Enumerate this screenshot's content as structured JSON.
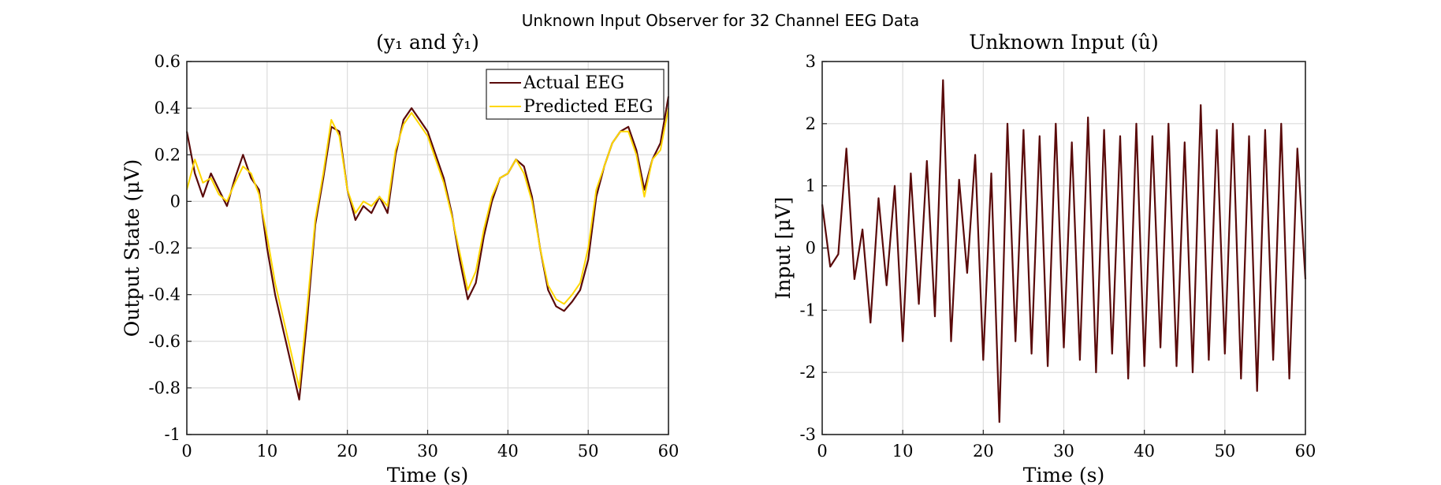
{
  "figure": {
    "title": "Unknown Input Observer for 32 Channel EEG Data"
  },
  "chart_data": [
    {
      "type": "line",
      "title": "(y₁ and ŷ₁)",
      "xlabel": "Time (s)",
      "ylabel": "Output State (μV)",
      "xlim": [
        0,
        60
      ],
      "ylim": [
        -1,
        0.6
      ],
      "xticks": [
        0,
        10,
        20,
        30,
        40,
        50,
        60
      ],
      "yticks": [
        -1,
        -0.8,
        -0.6,
        -0.4,
        -0.2,
        0,
        0.2,
        0.4,
        0.6
      ],
      "xtick_labels": [
        "0",
        "10",
        "20",
        "30",
        "40",
        "50",
        "60"
      ],
      "ytick_labels": [
        "-1",
        "-0.8",
        "-0.6",
        "-0.4",
        "-0.2",
        "0",
        "0.2",
        "0.4",
        "0.6"
      ],
      "grid": true,
      "legend": "top-right",
      "series": [
        {
          "name": "Actual EEG",
          "color": "#5a0a0a",
          "x": [
            0,
            1,
            2,
            3,
            4,
            5,
            6,
            7,
            8,
            9,
            10,
            11,
            12,
            13,
            14,
            15,
            16,
            17,
            18,
            19,
            20,
            21,
            22,
            23,
            24,
            25,
            26,
            27,
            28,
            29,
            30,
            31,
            32,
            33,
            34,
            35,
            36,
            37,
            38,
            39,
            40,
            41,
            42,
            43,
            44,
            45,
            46,
            47,
            48,
            49,
            50,
            51,
            52,
            53,
            54,
            55,
            56,
            57,
            58,
            59,
            60
          ],
          "values": [
            0.3,
            0.12,
            0.02,
            0.12,
            0.05,
            -0.02,
            0.1,
            0.2,
            0.1,
            0.05,
            -0.2,
            -0.4,
            -0.55,
            -0.7,
            -0.85,
            -0.5,
            -0.1,
            0.1,
            0.32,
            0.3,
            0.05,
            -0.08,
            -0.02,
            -0.05,
            0.02,
            -0.05,
            0.2,
            0.35,
            0.4,
            0.35,
            0.3,
            0.2,
            0.1,
            -0.05,
            -0.25,
            -0.42,
            -0.35,
            -0.15,
            0.0,
            0.1,
            0.12,
            0.18,
            0.15,
            0.02,
            -0.2,
            -0.38,
            -0.45,
            -0.47,
            -0.43,
            -0.38,
            -0.25,
            0.02,
            0.15,
            0.25,
            0.3,
            0.32,
            0.22,
            0.05,
            0.18,
            0.25,
            0.45
          ]
        },
        {
          "name": "Predicted EEG",
          "color": "#ffd700",
          "x": [
            0,
            1,
            2,
            3,
            4,
            5,
            6,
            7,
            8,
            9,
            10,
            11,
            12,
            13,
            14,
            15,
            16,
            17,
            18,
            19,
            20,
            21,
            22,
            23,
            24,
            25,
            26,
            27,
            28,
            29,
            30,
            31,
            32,
            33,
            34,
            35,
            36,
            37,
            38,
            39,
            40,
            41,
            42,
            43,
            44,
            45,
            46,
            47,
            48,
            49,
            50,
            51,
            52,
            53,
            54,
            55,
            56,
            57,
            58,
            59,
            60
          ],
          "values": [
            0.05,
            0.18,
            0.08,
            0.1,
            0.03,
            0.0,
            0.08,
            0.15,
            0.12,
            0.03,
            -0.15,
            -0.35,
            -0.5,
            -0.65,
            -0.8,
            -0.45,
            -0.08,
            0.12,
            0.35,
            0.28,
            0.05,
            -0.05,
            0.0,
            -0.02,
            0.02,
            -0.02,
            0.22,
            0.33,
            0.38,
            0.33,
            0.28,
            0.18,
            0.08,
            -0.06,
            -0.22,
            -0.38,
            -0.3,
            -0.12,
            0.02,
            0.1,
            0.12,
            0.18,
            0.12,
            0.0,
            -0.2,
            -0.36,
            -0.42,
            -0.44,
            -0.4,
            -0.35,
            -0.2,
            0.05,
            0.15,
            0.25,
            0.3,
            0.3,
            0.2,
            0.02,
            0.18,
            0.22,
            0.4
          ]
        }
      ]
    },
    {
      "type": "line",
      "title": "Unknown Input (û)",
      "xlabel": "Time (s)",
      "ylabel": "Input [μV]",
      "xlim": [
        0,
        60
      ],
      "ylim": [
        -3,
        3
      ],
      "xticks": [
        0,
        10,
        20,
        30,
        40,
        50,
        60
      ],
      "yticks": [
        -3,
        -2,
        -1,
        0,
        1,
        2,
        3
      ],
      "xtick_labels": [
        "0",
        "10",
        "20",
        "30",
        "40",
        "50",
        "60"
      ],
      "ytick_labels": [
        "-3",
        "-2",
        "-1",
        "0",
        "1",
        "2",
        "3"
      ],
      "grid": true,
      "series": [
        {
          "color": "#5a0a0a",
          "x": [
            0,
            1,
            2,
            3,
            4,
            5,
            6,
            7,
            8,
            9,
            10,
            11,
            12,
            13,
            14,
            15,
            16,
            17,
            18,
            19,
            20,
            21,
            22,
            23,
            24,
            25,
            26,
            27,
            28,
            29,
            30,
            31,
            32,
            33,
            34,
            35,
            36,
            37,
            38,
            39,
            40,
            41,
            42,
            43,
            44,
            45,
            46,
            47,
            48,
            49,
            50,
            51,
            52,
            53,
            54,
            55,
            56,
            57,
            58,
            59,
            60
          ],
          "values": [
            0.7,
            -0.3,
            -0.1,
            1.6,
            -0.5,
            0.3,
            -1.2,
            0.8,
            -0.6,
            1.0,
            -1.5,
            1.2,
            -0.9,
            1.4,
            -1.1,
            2.7,
            -1.5,
            1.1,
            -0.4,
            1.5,
            -1.8,
            1.2,
            -2.8,
            2.0,
            -1.5,
            1.9,
            -1.7,
            1.8,
            -1.9,
            2.0,
            -1.6,
            1.7,
            -1.8,
            2.1,
            -2.0,
            1.9,
            -1.7,
            1.8,
            -2.1,
            2.0,
            -1.9,
            1.8,
            -1.6,
            2.0,
            -1.9,
            1.7,
            -2.0,
            2.3,
            -1.8,
            1.9,
            -1.7,
            2.0,
            -2.1,
            1.8,
            -2.3,
            1.9,
            -1.8,
            2.0,
            -2.1,
            1.6,
            -0.5
          ]
        }
      ]
    }
  ]
}
